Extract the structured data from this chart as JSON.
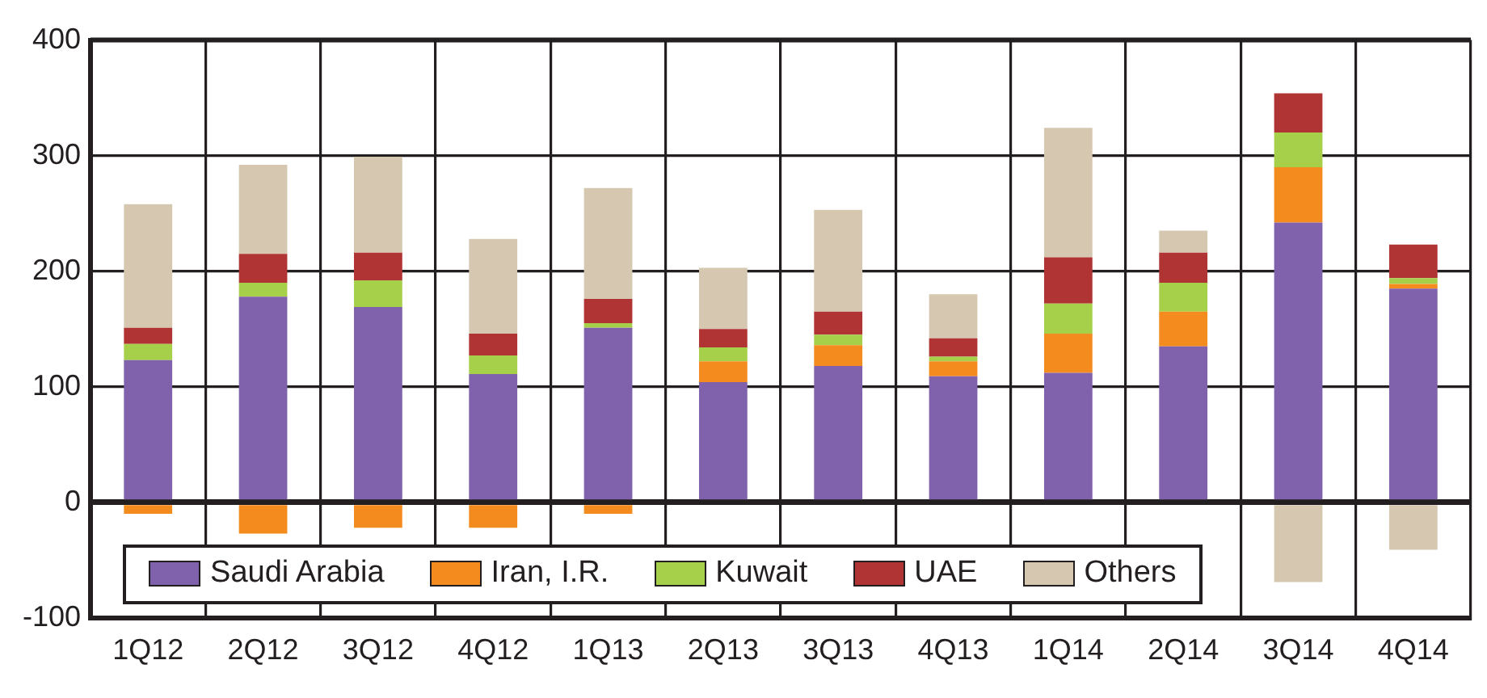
{
  "chart_data": {
    "type": "bar",
    "stacked": true,
    "categories": [
      "1Q12",
      "2Q12",
      "3Q12",
      "4Q12",
      "1Q13",
      "2Q13",
      "3Q13",
      "4Q13",
      "1Q14",
      "2Q14",
      "3Q14",
      "4Q14"
    ],
    "series": [
      {
        "name": "Saudi Arabia",
        "color": "#8061ab",
        "values": [
          123,
          178,
          169,
          111,
          151,
          104,
          118,
          109,
          112,
          135,
          242,
          185
        ]
      },
      {
        "name": "Iran, I.R.",
        "color": "#f38b1f",
        "values": [
          -10,
          -27,
          -22,
          -22,
          -10,
          18,
          18,
          13,
          34,
          30,
          48,
          4
        ]
      },
      {
        "name": "Kuwait",
        "color": "#a6cf4a",
        "values": [
          14,
          12,
          23,
          16,
          4,
          12,
          9,
          4,
          26,
          25,
          30,
          5
        ]
      },
      {
        "name": "UAE",
        "color": "#b03434",
        "values": [
          14,
          25,
          24,
          19,
          21,
          16,
          20,
          16,
          40,
          26,
          34,
          29
        ]
      },
      {
        "name": "Others",
        "color": "#d6c7b1",
        "values": [
          107,
          77,
          83,
          82,
          96,
          53,
          88,
          38,
          112,
          19,
          -69,
          -41
        ]
      }
    ],
    "ylim": [
      -100,
      400
    ],
    "yticks": [
      -100,
      0,
      100,
      200,
      300,
      400
    ],
    "grid": true,
    "legend": "bottom left"
  }
}
